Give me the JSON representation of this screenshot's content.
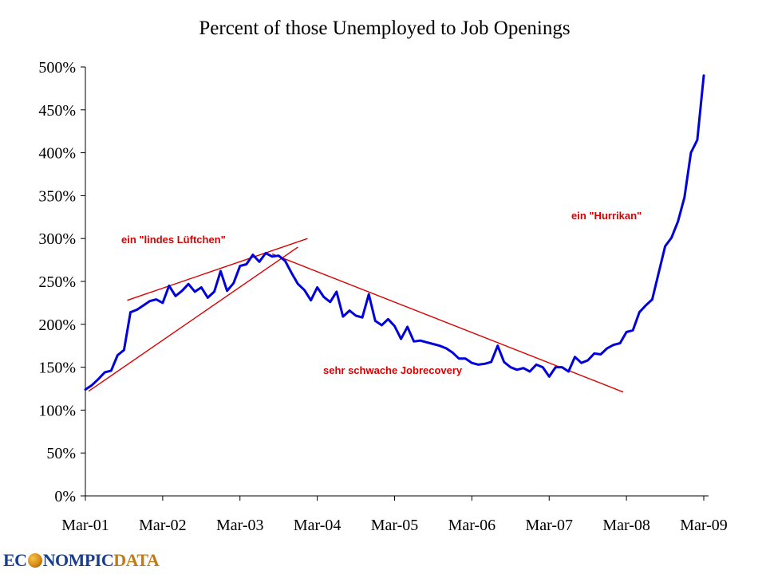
{
  "chart_data": {
    "type": "line",
    "title": "Percent of those Unemployed to Job Openings",
    "xlabel": "",
    "ylabel": "",
    "x_tick_labels": [
      "Mar-01",
      "Mar-02",
      "Mar-03",
      "Mar-04",
      "Mar-05",
      "Mar-06",
      "Mar-07",
      "Mar-08",
      "Mar-09"
    ],
    "y_tick_labels": [
      "0%",
      "50%",
      "100%",
      "150%",
      "200%",
      "250%",
      "300%",
      "350%",
      "400%",
      "450%",
      "500%"
    ],
    "ylim": [
      0,
      500
    ],
    "x_range_months": [
      0,
      96
    ],
    "grid": false,
    "series": [
      {
        "name": "Unemployed to Job Openings",
        "color": "#0000dd",
        "values": [
          124,
          129,
          136,
          144,
          146,
          164,
          170,
          214,
          217,
          222,
          227,
          229,
          225,
          245,
          233,
          239,
          247,
          238,
          243,
          231,
          238,
          262,
          239,
          248,
          268,
          270,
          281,
          273,
          283,
          279,
          280,
          274,
          260,
          247,
          240,
          228,
          243,
          232,
          226,
          238,
          209,
          216,
          210,
          208,
          235,
          204,
          199,
          206,
          198,
          183,
          197,
          180,
          181,
          179,
          177,
          175,
          172,
          167,
          160,
          160,
          155,
          153,
          154,
          156,
          175,
          156,
          150,
          147,
          149,
          145,
          153,
          150,
          139,
          150,
          150,
          145,
          162,
          155,
          158,
          166,
          165,
          172,
          176,
          178,
          191,
          193,
          214,
          222,
          229,
          260,
          291,
          301,
          320,
          348,
          400,
          415,
          490
        ]
      }
    ],
    "trend_lines": [
      {
        "name": "upper-rising-trend",
        "color": "#d90000",
        "points": [
          [
            6.5,
            228
          ],
          [
            34.5,
            300
          ]
        ]
      },
      {
        "name": "lower-rising-trend",
        "color": "#d90000",
        "points": [
          [
            0.5,
            122
          ],
          [
            33,
            290
          ]
        ]
      },
      {
        "name": "falling-trend",
        "color": "#d90000",
        "points": [
          [
            29,
            282
          ],
          [
            83.5,
            121
          ]
        ]
      }
    ],
    "annotations": [
      {
        "name": "annotation-lindes-lueftchen",
        "text": "ein \"lindes Lüftchen\""
      },
      {
        "name": "annotation-jobrecovery",
        "text": "sehr schwache Jobrecovery"
      },
      {
        "name": "annotation-hurrikan",
        "text": "ein \"Hurrikan\""
      }
    ]
  },
  "logo": {
    "main": "EC",
    "middle": "NOMPIC",
    "data": "DATA"
  }
}
